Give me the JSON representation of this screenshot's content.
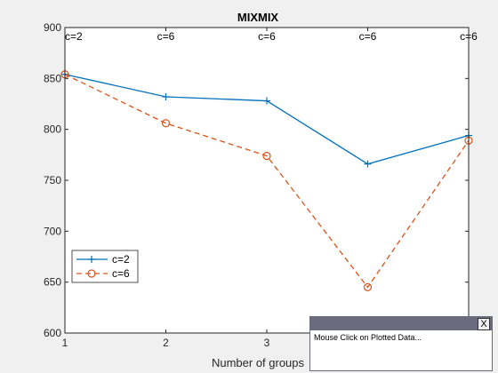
{
  "chart_data": {
    "type": "line",
    "title": "MIXMIX",
    "xlabel": "Number of groups",
    "ylabel": "",
    "xlim": [
      1,
      5
    ],
    "ylim": [
      600,
      900
    ],
    "x": [
      1,
      2,
      3,
      4,
      5
    ],
    "xticks": [
      "1",
      "2",
      "3",
      "",
      ""
    ],
    "yticks": [
      "600",
      "650",
      "700",
      "750",
      "800",
      "850",
      "900"
    ],
    "grid": false,
    "legend_position": "lower-left",
    "annotations": [
      "c=2",
      "c=6",
      "c=6",
      "c=6",
      "c=6"
    ],
    "series": [
      {
        "name": "c=2",
        "values": [
          854,
          832,
          828,
          766,
          794
        ],
        "color": "#0072bd",
        "marker": "plus",
        "line": "solid"
      },
      {
        "name": "c=6",
        "values": [
          854,
          806,
          774,
          645,
          789
        ],
        "color": "#d95319",
        "marker": "circle",
        "line": "dashed"
      }
    ]
  },
  "popup": {
    "close_label": "X",
    "message": "Mouse Click on Plotted Data..."
  }
}
